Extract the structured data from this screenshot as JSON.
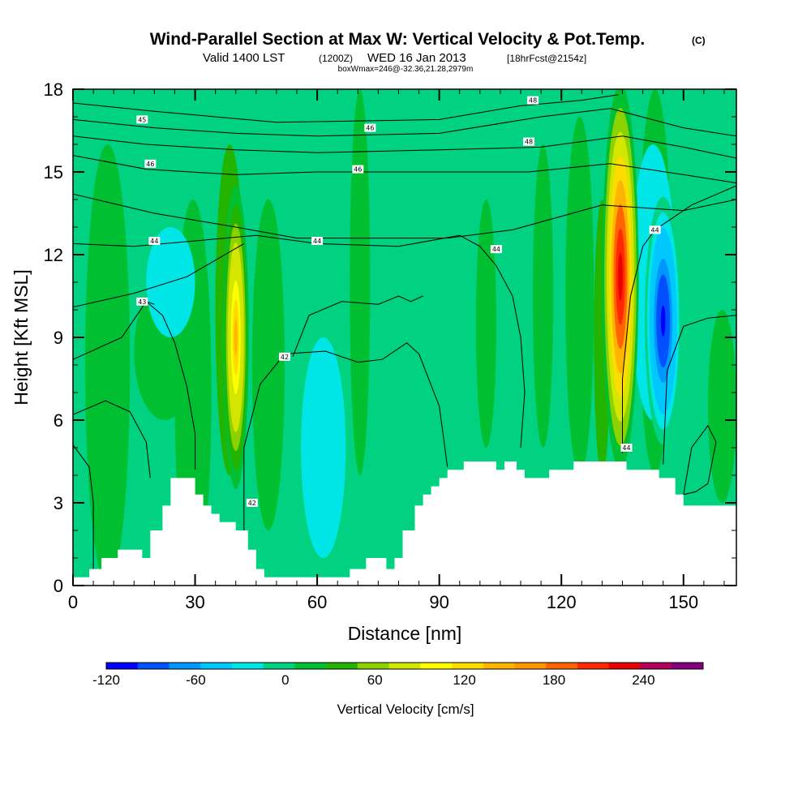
{
  "title": {
    "main": "Wind-Parallel Section at Max W: Vertical Velocity & Pot.Temp.",
    "copyright": "(C)",
    "valid_prefix": "Valid 1400 LST",
    "valid_z": "(1200Z)",
    "valid_date": "WED 16 Jan 2013",
    "forecast": "[18hrFcst@2154z]",
    "box_info": "boxWmax=246@-32.36,21.28,2979m"
  },
  "chart_data": {
    "type": "heatmap",
    "description_fields": "vertical velocity shaded, potential temperature contours",
    "xlabel": "Distance [nm]",
    "ylabel": "Height [Kft MSL]",
    "xlim": [
      0,
      163
    ],
    "ylim": [
      0,
      18
    ],
    "x_ticks": [
      0,
      30,
      60,
      90,
      120,
      150
    ],
    "y_ticks": [
      0,
      3,
      6,
      9,
      12,
      15,
      18
    ],
    "colorbar": {
      "label": "Vertical Velocity [cm/s]",
      "min": -120,
      "max": 280,
      "tick_labels": [
        "-120",
        "-60",
        "0",
        "60",
        "120",
        "180",
        "240"
      ],
      "tick_values": [
        -120,
        -60,
        0,
        60,
        120,
        180,
        240
      ],
      "colors": [
        "#0000ff",
        "#0050ff",
        "#0096ff",
        "#00c8ff",
        "#00e6e6",
        "#00d282",
        "#00c032",
        "#23b400",
        "#8cd200",
        "#d2e600",
        "#ffff00",
        "#ffdc00",
        "#ffb400",
        "#ff9600",
        "#ff6400",
        "#ff2800",
        "#e60000",
        "#b4005a",
        "#800080"
      ]
    },
    "updraft_cores": [
      {
        "x_nm": 40,
        "peak_kft": 9.0,
        "max_cms": 140
      },
      {
        "x_nm": 134.5,
        "peak_kft": 11.2,
        "max_cms": 246
      }
    ],
    "downdraft_cores": [
      {
        "x_nm": 145,
        "peak_kft": 9.6,
        "min_cms": -120
      }
    ],
    "terrain_kft": [
      [
        0,
        0.3
      ],
      [
        4,
        0.3
      ],
      [
        4,
        0.6
      ],
      [
        7,
        0.6
      ],
      [
        7,
        1.0
      ],
      [
        11,
        1.0
      ],
      [
        11,
        1.3
      ],
      [
        17,
        1.3
      ],
      [
        17,
        1.0
      ],
      [
        19,
        1.0
      ],
      [
        19,
        2.0
      ],
      [
        22,
        2.0
      ],
      [
        22,
        2.9
      ],
      [
        24,
        2.9
      ],
      [
        24,
        3.9
      ],
      [
        30,
        3.9
      ],
      [
        30,
        3.3
      ],
      [
        32,
        3.3
      ],
      [
        32,
        2.9
      ],
      [
        34,
        2.9
      ],
      [
        34,
        2.6
      ],
      [
        36,
        2.6
      ],
      [
        36,
        2.3
      ],
      [
        40,
        2.3
      ],
      [
        40,
        2.0
      ],
      [
        43,
        2.0
      ],
      [
        43,
        1.3
      ],
      [
        45,
        1.3
      ],
      [
        45,
        0.6
      ],
      [
        47,
        0.6
      ],
      [
        47,
        0.3
      ],
      [
        68,
        0.3
      ],
      [
        68,
        0.6
      ],
      [
        72,
        0.6
      ],
      [
        72,
        1.0
      ],
      [
        77,
        1.0
      ],
      [
        77,
        0.6
      ],
      [
        79,
        0.6
      ],
      [
        79,
        1.0
      ],
      [
        81,
        1.0
      ],
      [
        81,
        2.0
      ],
      [
        84,
        2.0
      ],
      [
        84,
        2.9
      ],
      [
        86,
        2.9
      ],
      [
        86,
        3.3
      ],
      [
        88,
        3.3
      ],
      [
        88,
        3.6
      ],
      [
        90,
        3.6
      ],
      [
        90,
        3.9
      ],
      [
        92,
        3.9
      ],
      [
        92,
        4.2
      ],
      [
        96,
        4.2
      ],
      [
        96,
        4.5
      ],
      [
        104,
        4.5
      ],
      [
        104,
        4.2
      ],
      [
        106,
        4.2
      ],
      [
        106,
        4.5
      ],
      [
        109,
        4.5
      ],
      [
        109,
        4.2
      ],
      [
        111,
        4.2
      ],
      [
        111,
        3.9
      ],
      [
        117,
        3.9
      ],
      [
        117,
        4.2
      ],
      [
        123,
        4.2
      ],
      [
        123,
        4.5
      ],
      [
        136,
        4.5
      ],
      [
        136,
        4.2
      ],
      [
        144,
        4.2
      ],
      [
        144,
        3.9
      ],
      [
        148,
        3.9
      ],
      [
        148,
        3.3
      ],
      [
        150,
        3.3
      ],
      [
        150,
        2.9
      ],
      [
        163,
        2.9
      ]
    ],
    "contour_labels": [
      "42",
      "42",
      "43",
      "44",
      "44",
      "44",
      "44",
      "44",
      "45",
      "46",
      "46",
      "46",
      "48",
      "48"
    ]
  }
}
